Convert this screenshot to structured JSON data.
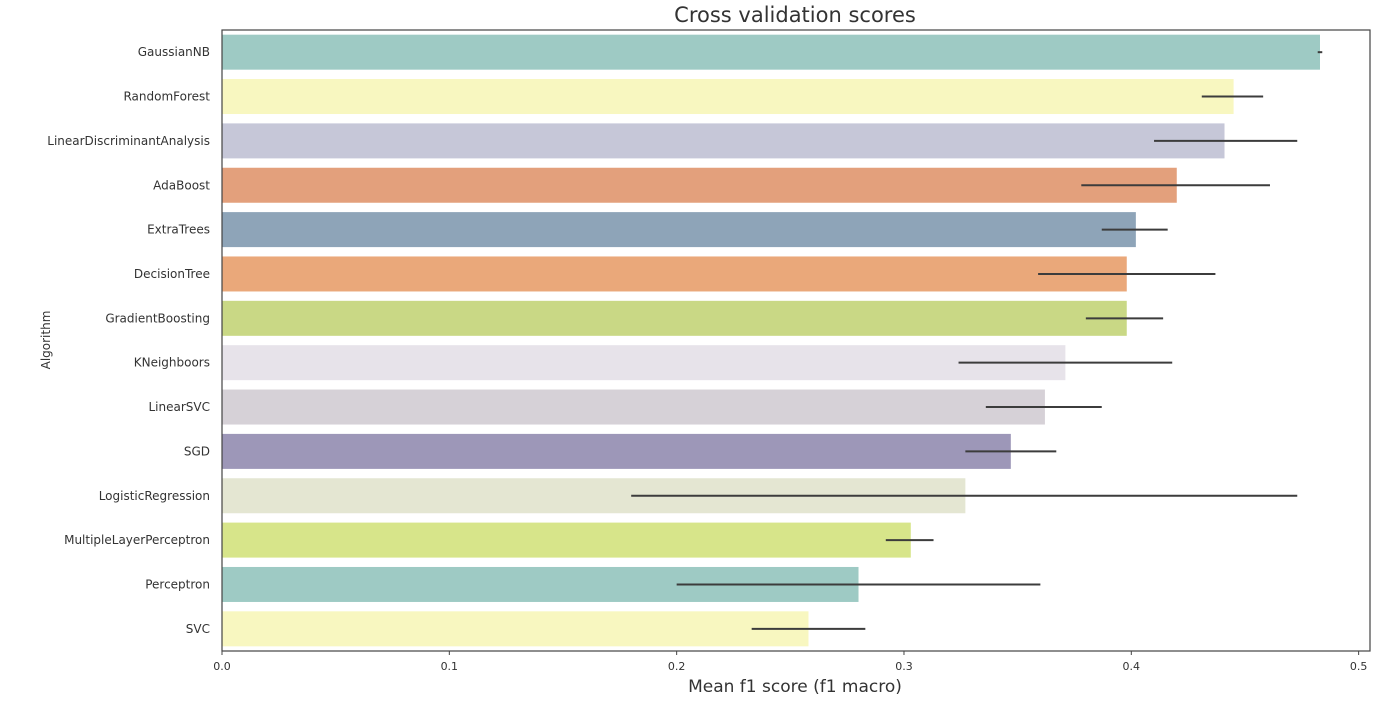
{
  "chart_data": {
    "type": "bar",
    "orientation": "horizontal",
    "title": "Cross validation scores",
    "xlabel": "Mean f1 score (f1 macro)",
    "ylabel": "Algorithm",
    "xlim": [
      0,
      0.505
    ],
    "xticks": [
      "0.0",
      "0.1",
      "0.2",
      "0.3",
      "0.4",
      "0.5"
    ],
    "grid": false,
    "categories": [
      "GaussianNB",
      "RandomForest",
      "LinearDiscriminantAnalysis",
      "AdaBoost",
      "ExtraTrees",
      "DecisionTree",
      "GradientBoosting",
      "KNeighboors",
      "LinearSVC",
      "SGD",
      "LogisticRegression",
      "MultipleLayerPerceptron",
      "Perceptron",
      "SVC"
    ],
    "values": [
      0.483,
      0.445,
      0.441,
      0.42,
      0.402,
      0.398,
      0.398,
      0.371,
      0.362,
      0.347,
      0.327,
      0.303,
      0.28,
      0.258
    ],
    "errors": [
      [
        0.482,
        0.484
      ],
      [
        0.431,
        0.458
      ],
      [
        0.41,
        0.473
      ],
      [
        0.378,
        0.461
      ],
      [
        0.387,
        0.416
      ],
      [
        0.359,
        0.437
      ],
      [
        0.38,
        0.414
      ],
      [
        0.324,
        0.418
      ],
      [
        0.336,
        0.387
      ],
      [
        0.327,
        0.367
      ],
      [
        0.18,
        0.473
      ],
      [
        0.292,
        0.313
      ],
      [
        0.2,
        0.36
      ],
      [
        0.233,
        0.283
      ]
    ],
    "colors": [
      "#9ecac4",
      "#f8f7c0",
      "#c6c7d8",
      "#e3a07c",
      "#8ea4b8",
      "#eaa87a",
      "#c9d885",
      "#e7e3ea",
      "#d6d1d7",
      "#9d97b8",
      "#e4e6d2",
      "#d7e58a",
      "#9ecac4",
      "#f8f7c0"
    ]
  }
}
